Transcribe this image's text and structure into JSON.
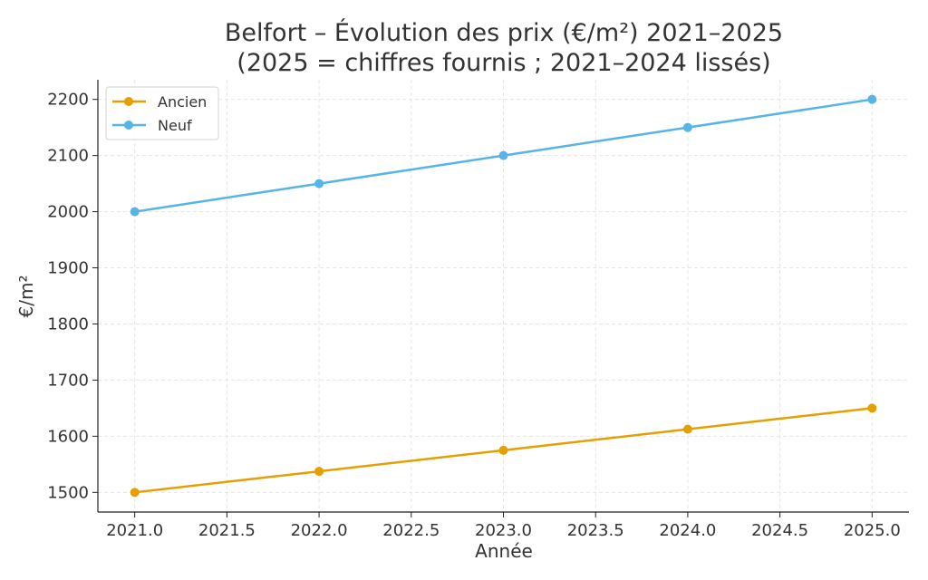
{
  "chart_data": {
    "type": "line",
    "title": "Belfort – Évolution des prix (€/m²) 2021–2025",
    "subtitle": "(2025 = chiffres fournis ; 2021–2024 lissés)",
    "xlabel": "Année",
    "ylabel": "€/m²",
    "x": [
      2021,
      2022,
      2023,
      2024,
      2025
    ],
    "xlim": [
      2020.8,
      2025.2
    ],
    "ylim": [
      1465,
      2235
    ],
    "xticks": [
      2021.0,
      2021.5,
      2022.0,
      2022.5,
      2023.0,
      2023.5,
      2024.0,
      2024.5,
      2025.0
    ],
    "xtick_labels": [
      "2021.0",
      "2021.5",
      "2022.0",
      "2022.5",
      "2023.0",
      "2023.5",
      "2024.0",
      "2024.5",
      "2025.0"
    ],
    "yticks": [
      1500,
      1600,
      1700,
      1800,
      1900,
      2000,
      2100,
      2200
    ],
    "ytick_labels": [
      "1500",
      "1600",
      "1700",
      "1800",
      "1900",
      "2000",
      "2100",
      "2200"
    ],
    "grid": true,
    "legend_placement": "top-left",
    "series": [
      {
        "name": "Ancien",
        "color": "#E69F00",
        "values": [
          1500,
          1537.5,
          1575,
          1612.5,
          1650
        ]
      },
      {
        "name": "Neuf",
        "color": "#56B4E9",
        "values": [
          2000,
          2050,
          2100,
          2150,
          2200
        ]
      }
    ]
  }
}
